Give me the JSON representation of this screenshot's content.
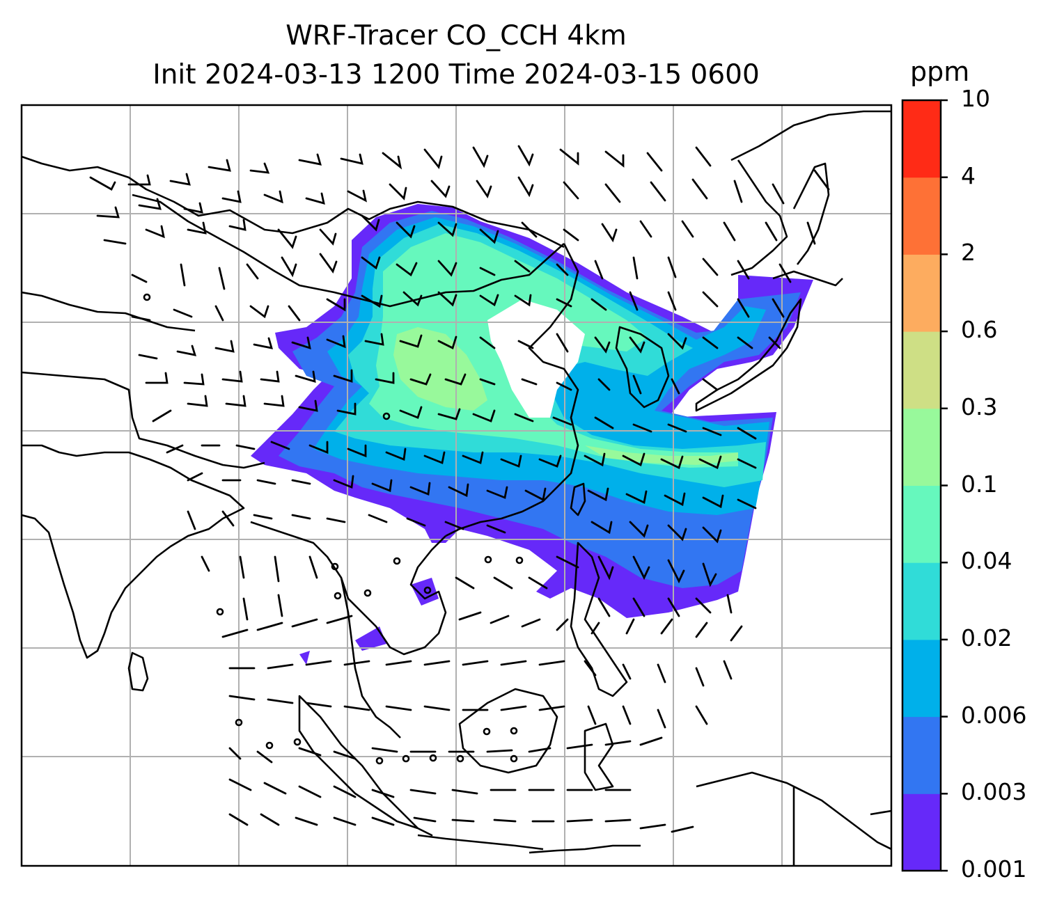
{
  "map": {
    "title_line1": "WRF-Tracer CO_CCH 4km",
    "title_line2": "Init 2024-03-13 1200 Time 2024-03-15 0600",
    "variable": "CO_CCH tracer concentration",
    "overlays": [
      "coastlines",
      "country borders",
      "lat-lon gridlines",
      "wind barbs"
    ],
    "gridline_color": "#b0b0b0",
    "land_color": "#ffffff"
  },
  "colorbar": {
    "unit": "ppm",
    "levels": [
      "0.001",
      "0.003",
      "0.006",
      "0.02",
      "0.04",
      "0.1",
      "0.3",
      "0.6",
      "2",
      "4",
      "10"
    ],
    "colors": [
      "#6629f9",
      "#3276f2",
      "#00b0ea",
      "#30dcd8",
      "#66f8bd",
      "#98f99b",
      "#cedf85",
      "#fdac5f",
      "#fe7136",
      "#ff2b16"
    ]
  }
}
